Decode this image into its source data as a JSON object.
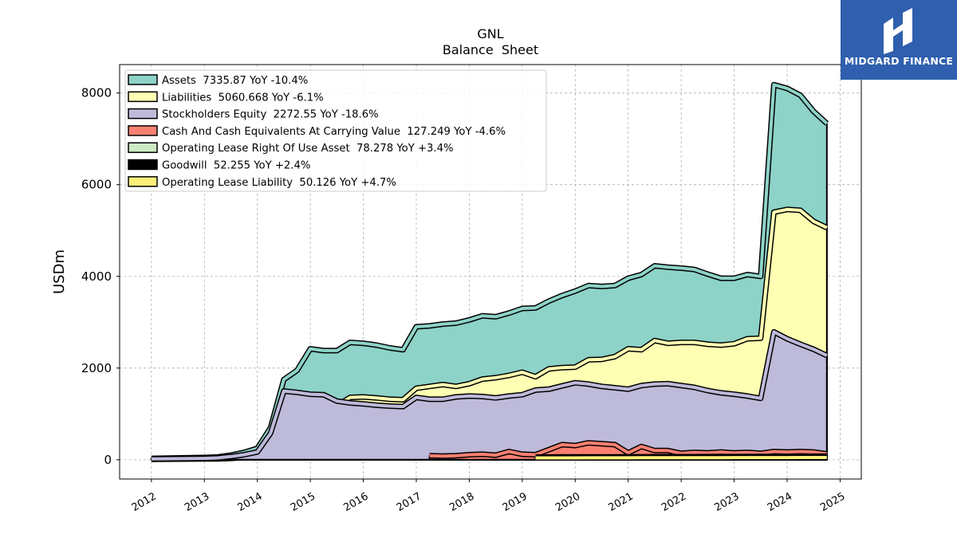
{
  "brand": {
    "name": "MIDGARD FINANCE",
    "bg": "#2f5fae"
  },
  "chart_data": {
    "type": "area",
    "title": "GNL",
    "subtitle": "Balance  Sheet",
    "ylabel": "USDm",
    "xlabel": "",
    "xlim": [
      2011.4,
      2025.4
    ],
    "ylim": [
      -420,
      8620
    ],
    "yticks": [
      0,
      2000,
      4000,
      6000,
      8000
    ],
    "xticks": [
      "2012",
      "2013",
      "2014",
      "2015",
      "2016",
      "2017",
      "2018",
      "2019",
      "2020",
      "2021",
      "2022",
      "2023",
      "2024",
      "2025"
    ],
    "grid": true,
    "legend_position": "top-left",
    "series": [
      {
        "name": "Assets  7335.87 YoY -10.4%",
        "color": "#8dd3c7",
        "x": [
          2012.0,
          2013.0,
          2013.25,
          2013.5,
          2013.75,
          2014.0,
          2014.25,
          2014.5,
          2014.75,
          2015.0,
          2015.25,
          2015.5,
          2015.75,
          2016.0,
          2016.25,
          2016.5,
          2016.75,
          2017.0,
          2017.25,
          2017.5,
          2017.75,
          2018.0,
          2018.25,
          2018.5,
          2018.75,
          2019.0,
          2019.25,
          2019.5,
          2019.75,
          2020.0,
          2020.25,
          2020.5,
          2020.75,
          2021.0,
          2021.25,
          2021.5,
          2021.75,
          2022.0,
          2022.25,
          2022.5,
          2022.75,
          2023.0,
          2023.25,
          2023.5,
          2023.75,
          2024.0,
          2024.25,
          2024.5,
          2024.75
        ],
        "values": [
          30,
          50,
          60,
          100,
          160,
          250,
          700,
          1750,
          1950,
          2420,
          2380,
          2380,
          2560,
          2540,
          2500,
          2440,
          2400,
          2900,
          2920,
          2960,
          2980,
          3050,
          3140,
          3120,
          3200,
          3300,
          3310,
          3460,
          3580,
          3680,
          3800,
          3780,
          3800,
          3960,
          4040,
          4230,
          4200,
          4180,
          4150,
          4050,
          3960,
          3960,
          4040,
          4000,
          8180,
          8100,
          7950,
          7600,
          7336
        ]
      },
      {
        "name": "Liabilities  5060.668 YoY -6.1%",
        "color": "#ffffb3",
        "x": [
          2012.0,
          2013.0,
          2013.25,
          2013.5,
          2013.75,
          2014.0,
          2014.25,
          2014.5,
          2014.75,
          2015.0,
          2015.25,
          2015.5,
          2015.75,
          2016.0,
          2016.25,
          2016.5,
          2016.75,
          2017.0,
          2017.25,
          2017.5,
          2017.75,
          2018.0,
          2018.25,
          2018.5,
          2018.75,
          2019.0,
          2019.25,
          2019.5,
          2019.75,
          2020.0,
          2020.25,
          2020.5,
          2020.75,
          2021.0,
          2021.25,
          2021.5,
          2021.75,
          2022.0,
          2022.25,
          2022.5,
          2022.75,
          2023.0,
          2023.25,
          2023.5,
          2023.75,
          2024.0,
          2024.25,
          2024.5,
          2024.75
        ],
        "values": [
          10,
          20,
          20,
          30,
          50,
          80,
          280,
          320,
          520,
          1020,
          980,
          1180,
          1360,
          1370,
          1350,
          1320,
          1310,
          1560,
          1600,
          1640,
          1600,
          1660,
          1760,
          1790,
          1840,
          1910,
          1810,
          1980,
          2010,
          2020,
          2180,
          2190,
          2250,
          2420,
          2400,
          2600,
          2540,
          2560,
          2560,
          2520,
          2500,
          2530,
          2640,
          2650,
          5400,
          5460,
          5440,
          5200,
          5061
        ]
      },
      {
        "name": "Stockholders Equity  2272.55 YoY -18.6%",
        "color": "#bebada",
        "x": [
          2012.0,
          2013.0,
          2013.25,
          2013.5,
          2013.75,
          2014.0,
          2014.25,
          2014.5,
          2014.75,
          2015.0,
          2015.25,
          2015.5,
          2015.75,
          2016.0,
          2016.25,
          2016.5,
          2016.75,
          2017.0,
          2017.25,
          2017.5,
          2017.75,
          2018.0,
          2018.25,
          2018.5,
          2018.75,
          2019.0,
          2019.25,
          2019.5,
          2019.75,
          2020.0,
          2020.25,
          2020.5,
          2020.75,
          2021.0,
          2021.25,
          2021.5,
          2021.75,
          2022.0,
          2022.25,
          2022.5,
          2022.75,
          2023.0,
          2023.25,
          2023.5,
          2023.75,
          2024.0,
          2024.25,
          2024.5,
          2024.75
        ],
        "values": [
          20,
          30,
          40,
          70,
          110,
          170,
          580,
          1500,
          1470,
          1430,
          1420,
          1280,
          1240,
          1220,
          1190,
          1170,
          1160,
          1360,
          1320,
          1320,
          1370,
          1390,
          1380,
          1350,
          1390,
          1420,
          1520,
          1540,
          1610,
          1680,
          1650,
          1600,
          1570,
          1540,
          1620,
          1650,
          1660,
          1620,
          1580,
          1510,
          1460,
          1430,
          1390,
          1340,
          2790,
          2640,
          2520,
          2410,
          2273
        ]
      },
      {
        "name": "Cash And Cash Equivalents At Carrying Value  127.249 YoY -4.6%",
        "color": "#fb8072",
        "x": [
          2017.25,
          2017.5,
          2017.75,
          2018.0,
          2018.25,
          2018.5,
          2018.75,
          2019.0,
          2019.25,
          2019.5,
          2019.75,
          2020.0,
          2020.25,
          2020.5,
          2020.75,
          2021.0,
          2021.25,
          2021.5,
          2021.75,
          2022.0,
          2022.25,
          2022.5,
          2022.75,
          2023.0,
          2023.25,
          2023.5,
          2023.75,
          2024.0,
          2024.25,
          2024.5,
          2024.75
        ],
        "values": [
          90,
          80,
          90,
          110,
          120,
          100,
          180,
          120,
          110,
          220,
          330,
          310,
          370,
          350,
          330,
          150,
          290,
          200,
          200,
          140,
          160,
          150,
          170,
          150,
          160,
          140,
          180,
          170,
          180,
          170,
          127
        ]
      },
      {
        "name": "Operating Lease Right Of Use Asset  78.278 YoY +3.4%",
        "color": "#ccebc5",
        "x": [
          2019.25,
          2019.5,
          2019.75,
          2020.0,
          2020.25,
          2020.5,
          2020.75,
          2021.0,
          2021.25,
          2021.5,
          2021.75,
          2022.0,
          2022.25,
          2022.5,
          2022.75,
          2023.0,
          2023.25,
          2023.5,
          2023.75,
          2024.0,
          2024.25,
          2024.5,
          2024.75
        ],
        "values": [
          60,
          60,
          62,
          62,
          63,
          63,
          64,
          65,
          65,
          66,
          66,
          67,
          67,
          68,
          68,
          69,
          70,
          71,
          74,
          75,
          76,
          77,
          78
        ]
      },
      {
        "name": "Goodwill  52.255 YoY +2.4%",
        "color": "#000000",
        "x": [
          2019.25,
          2019.5,
          2019.75,
          2020.0,
          2020.25,
          2020.5,
          2020.75,
          2021.0,
          2021.25,
          2021.5,
          2021.75,
          2022.0,
          2022.25,
          2022.5,
          2022.75,
          2023.0,
          2023.25,
          2023.5,
          2023.75,
          2024.0,
          2024.25,
          2024.5,
          2024.75
        ],
        "values": [
          55,
          55,
          56,
          55,
          54,
          53,
          54,
          55,
          55,
          55,
          54,
          53,
          52,
          51,
          50,
          50,
          50,
          50,
          51,
          51,
          52,
          52,
          52
        ]
      },
      {
        "name": "Operating Lease Liability  50.126 YoY +4.7%",
        "color": "#fdf07a",
        "x": [
          2019.25,
          2019.5,
          2019.75,
          2020.0,
          2020.25,
          2020.5,
          2020.75,
          2021.0,
          2021.25,
          2021.5,
          2021.75,
          2022.0,
          2022.25,
          2022.5,
          2022.75,
          2023.0,
          2023.25,
          2023.5,
          2023.75,
          2024.0,
          2024.25,
          2024.5,
          2024.75
        ],
        "values": [
          40,
          40,
          41,
          41,
          42,
          42,
          43,
          43,
          44,
          44,
          45,
          45,
          46,
          46,
          46,
          47,
          47,
          47,
          48,
          48,
          49,
          49,
          50
        ]
      }
    ]
  }
}
